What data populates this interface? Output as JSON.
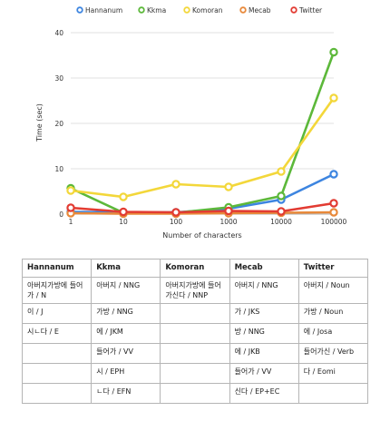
{
  "chart_data": {
    "type": "line",
    "xlabel": "Number of characters",
    "ylabel": "Time (sec)",
    "x": [
      "1",
      "10",
      "100",
      "1000",
      "10000",
      "100000"
    ],
    "xscale": "log",
    "ylim": [
      0,
      40
    ],
    "yticks": [
      "0",
      "10",
      "20",
      "30",
      "40"
    ],
    "grid": "horizontal",
    "legend": "top",
    "series": [
      {
        "name": "Hannanum",
        "color": "#3d85e0",
        "values": [
          0.5,
          0.4,
          0.4,
          1.2,
          3.2,
          8.8
        ]
      },
      {
        "name": "Kkma",
        "color": "#5cb83a",
        "values": [
          5.7,
          0.3,
          0.3,
          1.5,
          4.0,
          35.7
        ]
      },
      {
        "name": "Komoran",
        "color": "#f3d73a",
        "values": [
          5.2,
          3.8,
          6.6,
          6.0,
          9.4,
          25.6
        ]
      },
      {
        "name": "Mecab",
        "color": "#e8893a",
        "values": [
          0.2,
          0.1,
          0.1,
          0.2,
          0.3,
          0.4
        ]
      },
      {
        "name": "Twitter",
        "color": "#e23b32",
        "values": [
          1.4,
          0.5,
          0.4,
          0.7,
          0.6,
          2.4
        ]
      }
    ]
  },
  "table": {
    "headers": [
      "Hannanum",
      "Kkma",
      "Komoran",
      "Mecab",
      "Twitter"
    ],
    "rows": [
      [
        "아버지가방에 들어가 / N",
        "아버지 / NNG",
        "아버지가방에 들어가신다 / NNP",
        "아버지 / NNG",
        "아버지 / Noun"
      ],
      [
        "이 / J",
        "가방 / NNG",
        "",
        "가 / JKS",
        "가방 / Noun"
      ],
      [
        "시ㄴ다 / E",
        "에 / JKM",
        "",
        "방 / NNG",
        "에 / Josa"
      ],
      [
        "",
        "들어가 / VV",
        "",
        "에 / JKB",
        "들어가신 / Verb"
      ],
      [
        "",
        "시 / EPH",
        "",
        "들어가 / VV",
        "다 / Eomi"
      ],
      [
        "",
        "ㄴ다 / EFN",
        "",
        "신다 / EP+EC",
        ""
      ]
    ]
  }
}
